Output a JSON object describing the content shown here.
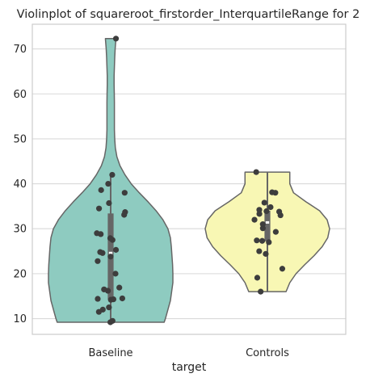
{
  "chart_data": {
    "type": "violin",
    "title": "Violinplot of squareroot_firstorder_InterquartileRange for 2",
    "xlabel": "target",
    "ylabel": "",
    "ylim": [
      6.5,
      75.5
    ],
    "yticks": [
      10,
      20,
      30,
      40,
      50,
      60,
      70
    ],
    "grid": "horizontal",
    "categories": [
      "Baseline",
      "Controls"
    ],
    "colors": [
      "#8ecbc0",
      "#f8f7b4"
    ],
    "violins": [
      {
        "category": "Baseline",
        "min": 9.2,
        "max": 72.3,
        "q1": 14.3,
        "median": 24.6,
        "q3": 33.4,
        "whisker_low": 9.2,
        "whisker_high": 42.0,
        "density_y": [
          9.2,
          10,
          12,
          14,
          16,
          18,
          20,
          22,
          24,
          26,
          28,
          30,
          32,
          34,
          36,
          38,
          40,
          42,
          44,
          46,
          48,
          50,
          52,
          54,
          56,
          58,
          60,
          62,
          64,
          66,
          68,
          70,
          72.3
        ],
        "density_w": [
          0.86,
          0.88,
          0.92,
          0.96,
          0.98,
          1.0,
          1.0,
          0.995,
          0.985,
          0.975,
          0.96,
          0.92,
          0.84,
          0.73,
          0.6,
          0.46,
          0.33,
          0.23,
          0.15,
          0.1,
          0.075,
          0.065,
          0.06,
          0.06,
          0.06,
          0.06,
          0.058,
          0.055,
          0.055,
          0.06,
          0.065,
          0.072,
          0.085
        ],
        "points": [
          9.2,
          9.5,
          11.5,
          12.0,
          12.5,
          14.2,
          14.4,
          14.5,
          14.3,
          16.2,
          16.5,
          16.9,
          20.0,
          22.8,
          23.8,
          24.6,
          25.3,
          24.8,
          27.5,
          27.9,
          28.8,
          29.0,
          33.1,
          33.7,
          34.5,
          35.7,
          38.0,
          38.6,
          40.0,
          42.0,
          72.3
        ]
      },
      {
        "category": "Controls",
        "min": 16.0,
        "max": 42.6,
        "q1": 27.2,
        "median": 31.4,
        "q3": 34.0,
        "whisker_low": 16.0,
        "whisker_high": 42.6,
        "density_y": [
          16.0,
          18,
          20,
          22,
          24,
          26,
          28,
          30,
          32,
          34,
          36,
          38,
          40,
          42.6
        ],
        "density_w": [
          0.3,
          0.36,
          0.46,
          0.6,
          0.75,
          0.88,
          0.97,
          1.0,
          0.96,
          0.84,
          0.62,
          0.42,
          0.36,
          0.36
        ],
        "points": [
          16.0,
          19.1,
          21.1,
          24.4,
          25.0,
          27.0,
          27.3,
          27.4,
          29.3,
          30.1,
          31.0,
          32.0,
          33.0,
          33.3,
          33.8,
          33.9,
          34.2,
          34.8,
          35.8,
          38.0,
          38.1,
          42.6
        ]
      }
    ]
  }
}
